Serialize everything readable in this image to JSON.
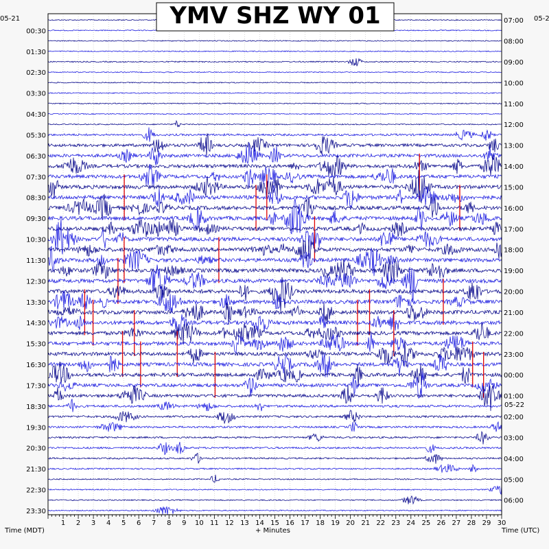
{
  "chart_data": {
    "type": "line",
    "title": "YMV SHZ WY 01",
    "xlabel": "+ Minutes",
    "x_ticks": [
      "1",
      "2",
      "3",
      "4",
      "5",
      "6",
      "7",
      "8",
      "9",
      "10",
      "11",
      "12",
      "13",
      "14",
      "15",
      "16",
      "17",
      "18",
      "19",
      "20",
      "21",
      "22",
      "23",
      "24",
      "25",
      "26",
      "27",
      "28",
      "29",
      "30"
    ],
    "xlim": [
      0,
      30
    ],
    "left_axis_label": "Time (MDT)",
    "right_axis_label": "Time (UTC)",
    "left_date": "05-21",
    "right_date_top": "05-2",
    "right_date_change": "05-22",
    "left_times": [
      "00:30",
      "01:30",
      "02:30",
      "03:30",
      "04:30",
      "05:30",
      "06:30",
      "07:30",
      "08:30",
      "09:30",
      "10:30",
      "11:30",
      "12:30",
      "13:30",
      "14:30",
      "15:30",
      "16:30",
      "17:30",
      "18:30",
      "19:30",
      "20:30",
      "21:30",
      "22:30",
      "23:30"
    ],
    "right_times": [
      "07:00",
      "08:00",
      "09:00",
      "10:00",
      "11:00",
      "12:00",
      "13:00",
      "14:00",
      "15:00",
      "16:00",
      "17:00",
      "18:00",
      "19:00",
      "20:00",
      "21:00",
      "22:00",
      "23:00",
      "00:00",
      "01:00",
      "02:00",
      "03:00",
      "04:00",
      "05:00",
      "06:00"
    ],
    "trace_count": 48,
    "trace_colors": [
      "#0a0a8c",
      "#1f1fe0"
    ],
    "clip_color": "#e00000",
    "activity_level": [
      0.05,
      0.05,
      0.05,
      0.05,
      0.12,
      0.05,
      0.05,
      0.05,
      0.05,
      0.05,
      0.08,
      0.4,
      0.7,
      0.8,
      0.85,
      0.9,
      0.95,
      1.0,
      1.0,
      1.0,
      1.0,
      1.0,
      1.0,
      1.0,
      1.0,
      1.0,
      1.0,
      1.0,
      1.0,
      1.0,
      0.95,
      0.9,
      0.9,
      0.9,
      0.9,
      0.8,
      0.7,
      0.5,
      0.4,
      0.35,
      0.3,
      0.35,
      0.25,
      0.2,
      0.1,
      0.1,
      0.1,
      0.1
    ]
  }
}
